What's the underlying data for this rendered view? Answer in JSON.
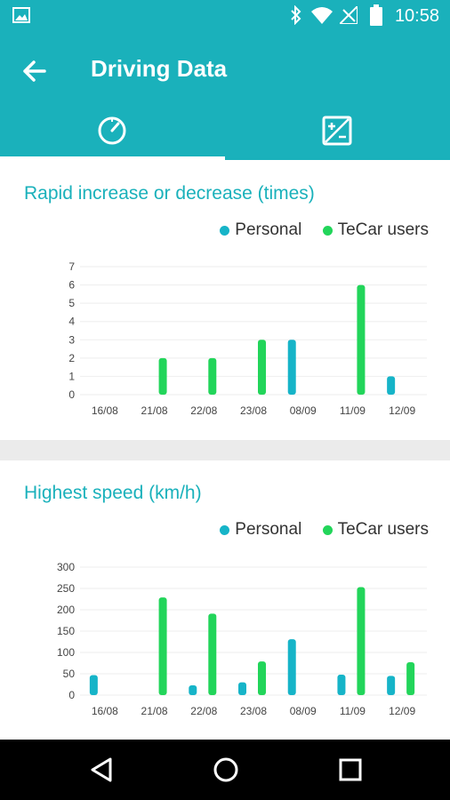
{
  "status_bar": {
    "time": "10:58"
  },
  "app_bar": {
    "title": "Driving Data"
  },
  "colors": {
    "primary": "#1ab1bb",
    "personal": "#16b4c8",
    "tecar": "#22d55a"
  },
  "charts": {
    "rapid": {
      "title": "Rapid increase or decrease (times)",
      "legend": {
        "personal": "Personal",
        "tecar": "TeCar users"
      }
    },
    "speed": {
      "title": "Highest speed (km/h)",
      "legend": {
        "personal": "Personal",
        "tecar": "TeCar users"
      }
    }
  },
  "chart_data": [
    {
      "type": "bar",
      "title": "Rapid increase or decrease (times)",
      "categories": [
        "16/08",
        "21/08",
        "22/08",
        "23/08",
        "08/09",
        "11/09",
        "12/09"
      ],
      "series": [
        {
          "name": "Personal",
          "values": [
            0,
            0,
            0,
            0,
            3,
            0,
            1
          ]
        },
        {
          "name": "TeCar users",
          "values": [
            0,
            2,
            2,
            3,
            0,
            6,
            0
          ]
        }
      ],
      "yticks": [
        0,
        1,
        2,
        3,
        4,
        5,
        6,
        7
      ],
      "ylim": [
        0,
        7
      ],
      "legend_position": "top-right"
    },
    {
      "type": "bar",
      "title": "Highest speed (km/h)",
      "categories": [
        "16/08",
        "21/08",
        "22/08",
        "23/08",
        "08/09",
        "11/09",
        "12/09"
      ],
      "series": [
        {
          "name": "Personal",
          "values": [
            47,
            0,
            23,
            30,
            131,
            48,
            45
          ]
        },
        {
          "name": "TeCar users",
          "values": [
            0,
            229,
            191,
            79,
            0,
            253,
            77
          ]
        }
      ],
      "yticks": [
        0,
        50,
        100,
        150,
        200,
        250,
        300
      ],
      "ylim": [
        0,
        300
      ],
      "legend_position": "top-right"
    }
  ]
}
